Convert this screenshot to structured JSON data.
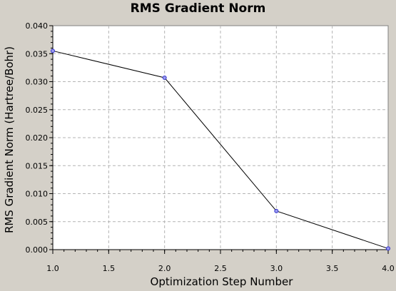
{
  "chart_data": {
    "type": "line",
    "title": "RMS Gradient Norm",
    "xlabel": "Optimization Step Number",
    "ylabel": "RMS Gradient Norm (Hartree/Bohr)",
    "xlim": [
      1.0,
      4.0
    ],
    "ylim": [
      0.0,
      0.04
    ],
    "x_ticks": [
      "1.0",
      "1.5",
      "2.0",
      "2.5",
      "3.0",
      "3.5",
      "4.0"
    ],
    "y_ticks": [
      "0.000",
      "0.005",
      "0.010",
      "0.015",
      "0.020",
      "0.025",
      "0.030",
      "0.035",
      "0.040"
    ],
    "grid": true,
    "series": [
      {
        "x": [
          1,
          2,
          3,
          4
        ],
        "values": [
          0.0355,
          0.0307,
          0.0069,
          0.0002
        ]
      }
    ],
    "colors": {
      "line": "#000000",
      "marker": "#3333cc",
      "background": "#d4d0c8",
      "plot_area": "#ffffff",
      "grid": "#b4b4b4"
    }
  }
}
